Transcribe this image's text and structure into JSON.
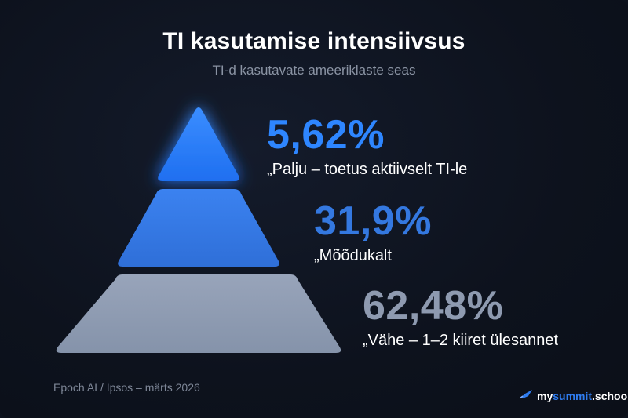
{
  "title": "TI kasutamise intensiivsus",
  "subtitle": "TI-d kasutavate ameeriklaste seas",
  "source": "Epoch AI / Ipsos – märts 2026",
  "brand": {
    "pre": "my",
    "mid": "summit",
    "post": ".school",
    "icon": "rocket-icon"
  },
  "colors": {
    "high": "#2e86ff",
    "medium": "#3478e0",
    "low": "#8e9ab0",
    "background": "#0d121d"
  },
  "chart_data": {
    "type": "pyramid",
    "title": "TI kasutamise intensiivsus",
    "subtitle": "TI-d kasutavate ameeriklaste seas",
    "tiers": [
      {
        "value": 5.62,
        "value_label": "5,62%",
        "label": "„Palju – toetus aktiivselt TI-le"
      },
      {
        "value": 31.9,
        "value_label": "31,9%",
        "label": "„Mõõdukalt"
      },
      {
        "value": 62.48,
        "value_label": "62,48%",
        "label": "„Vähe – 1–2 kiiret ülesannet"
      }
    ]
  }
}
